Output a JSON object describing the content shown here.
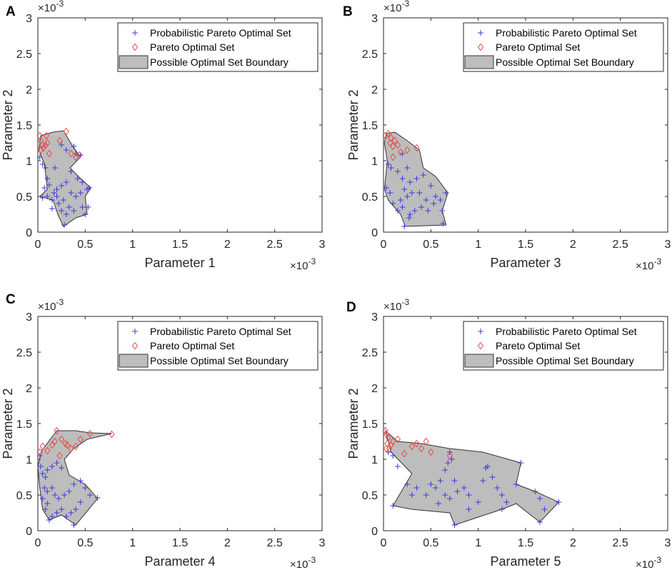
{
  "chart_data": [
    {
      "panel": "A",
      "type": "scatter",
      "xlabel": "Parameter 1",
      "ylabel": "Parameter 2",
      "x_multiplier": "×10^-3",
      "y_multiplier": "×10^-3",
      "xlim": [
        0,
        3
      ],
      "ylim": [
        0,
        3
      ],
      "xticks": [
        "0",
        "0.5",
        "1",
        "1.5",
        "2",
        "2.5",
        "3"
      ],
      "yticks": [
        "0",
        "0.5",
        "1",
        "1.5",
        "2",
        "2.5",
        "3"
      ],
      "legend": [
        "Probabilistic Pareto Optimal Set",
        "Pareto Optimal Set",
        "Possible Optimal Set Boundary"
      ],
      "legend_position": "top-right",
      "boundary": [
        [
          0.03,
          1.35
        ],
        [
          0.16,
          1.4
        ],
        [
          0.27,
          1.42
        ],
        [
          0.37,
          1.2
        ],
        [
          0.45,
          1.05
        ],
        [
          0.34,
          0.9
        ],
        [
          0.45,
          0.75
        ],
        [
          0.56,
          0.62
        ],
        [
          0.5,
          0.5
        ],
        [
          0.52,
          0.25
        ],
        [
          0.4,
          0.2
        ],
        [
          0.27,
          0.08
        ],
        [
          0.21,
          0.25
        ],
        [
          0.16,
          0.45
        ],
        [
          0.02,
          0.5
        ],
        [
          0.1,
          0.6
        ],
        [
          0.07,
          0.95
        ],
        [
          0.01,
          1.15
        ]
      ],
      "probabilistic_set": [
        [
          0.02,
          1.05
        ],
        [
          0.05,
          0.95
        ],
        [
          0.08,
          0.9
        ],
        [
          0.07,
          0.62
        ],
        [
          0.12,
          0.66
        ],
        [
          0.1,
          0.75
        ],
        [
          0.18,
          0.9
        ],
        [
          0.25,
          1.22
        ],
        [
          0.3,
          1.15
        ],
        [
          0.38,
          1.2
        ],
        [
          0.4,
          1.1
        ],
        [
          0.45,
          1.08
        ],
        [
          0.35,
          0.85
        ],
        [
          0.42,
          0.75
        ],
        [
          0.47,
          0.7
        ],
        [
          0.52,
          0.6
        ],
        [
          0.54,
          0.62
        ],
        [
          0.45,
          0.55
        ],
        [
          0.4,
          0.5
        ],
        [
          0.47,
          0.35
        ],
        [
          0.5,
          0.25
        ],
        [
          0.53,
          0.35
        ],
        [
          0.38,
          0.3
        ],
        [
          0.33,
          0.35
        ],
        [
          0.3,
          0.25
        ],
        [
          0.28,
          0.1
        ],
        [
          0.25,
          0.3
        ],
        [
          0.22,
          0.4
        ],
        [
          0.2,
          0.5
        ],
        [
          0.15,
          0.45
        ],
        [
          0.1,
          0.5
        ],
        [
          0.05,
          0.48
        ],
        [
          0.17,
          0.55
        ],
        [
          0.2,
          0.6
        ],
        [
          0.25,
          0.65
        ],
        [
          0.3,
          0.7
        ],
        [
          0.35,
          0.55
        ],
        [
          0.27,
          0.45
        ],
        [
          0.15,
          0.33
        ]
      ],
      "pareto_set": [
        [
          0.02,
          1.35
        ],
        [
          0.03,
          1.28
        ],
        [
          0.05,
          1.22
        ],
        [
          0.06,
          1.18
        ],
        [
          0.08,
          1.22
        ],
        [
          0.1,
          1.25
        ],
        [
          0.12,
          1.1
        ],
        [
          0.09,
          1.35
        ],
        [
          0.23,
          1.28
        ],
        [
          0.3,
          1.41
        ],
        [
          0.35,
          1.1
        ],
        [
          0.4,
          1.05
        ],
        [
          0.44,
          1.08
        ],
        [
          0.03,
          1.15
        ]
      ]
    },
    {
      "panel": "B",
      "type": "scatter",
      "xlabel": "Parameter 3",
      "ylabel": "Parameter 2",
      "x_multiplier": "×10^-3",
      "y_multiplier": "×10^-3",
      "xlim": [
        0,
        3
      ],
      "ylim": [
        0,
        3
      ],
      "xticks": [
        "0",
        "0.5",
        "1",
        "1.5",
        "2",
        "2.5",
        "3"
      ],
      "yticks": [
        "0",
        "0.5",
        "1",
        "1.5",
        "2",
        "2.5",
        "3"
      ],
      "legend": [
        "Probabilistic Pareto Optimal Set",
        "Pareto Optimal Set",
        "Possible Optimal Set Boundary"
      ],
      "legend_position": "top-right",
      "boundary": [
        [
          0.03,
          1.38
        ],
        [
          0.12,
          1.4
        ],
        [
          0.25,
          1.28
        ],
        [
          0.38,
          1.15
        ],
        [
          0.42,
          0.9
        ],
        [
          0.55,
          0.78
        ],
        [
          0.68,
          0.55
        ],
        [
          0.62,
          0.3
        ],
        [
          0.66,
          0.1
        ],
        [
          0.23,
          0.08
        ],
        [
          0.18,
          0.25
        ],
        [
          0.05,
          0.45
        ],
        [
          0.01,
          0.6
        ],
        [
          0.04,
          1.0
        ],
        [
          0.01,
          1.25
        ]
      ],
      "probabilistic_set": [
        [
          0.05,
          0.95
        ],
        [
          0.08,
          0.9
        ],
        [
          0.03,
          0.62
        ],
        [
          0.07,
          0.55
        ],
        [
          0.1,
          0.4
        ],
        [
          0.15,
          0.85
        ],
        [
          0.2,
          1.1
        ],
        [
          0.25,
          0.9
        ],
        [
          0.2,
          0.75
        ],
        [
          0.28,
          0.7
        ],
        [
          0.22,
          0.6
        ],
        [
          0.25,
          0.5
        ],
        [
          0.3,
          0.55
        ],
        [
          0.35,
          0.75
        ],
        [
          0.42,
          0.8
        ],
        [
          0.5,
          0.65
        ],
        [
          0.55,
          0.5
        ],
        [
          0.6,
          0.45
        ],
        [
          0.66,
          0.55
        ],
        [
          0.62,
          0.3
        ],
        [
          0.63,
          0.12
        ],
        [
          0.45,
          0.45
        ],
        [
          0.4,
          0.35
        ],
        [
          0.33,
          0.3
        ],
        [
          0.28,
          0.25
        ],
        [
          0.2,
          0.35
        ],
        [
          0.18,
          0.45
        ],
        [
          0.22,
          0.08
        ],
        [
          0.27,
          0.2
        ],
        [
          0.38,
          0.55
        ],
        [
          0.47,
          0.3
        ],
        [
          0.53,
          0.4
        ],
        [
          0.15,
          0.3
        ]
      ],
      "pareto_set": [
        [
          0.02,
          1.35
        ],
        [
          0.05,
          1.38
        ],
        [
          0.08,
          1.32
        ],
        [
          0.1,
          1.2
        ],
        [
          0.12,
          1.28
        ],
        [
          0.15,
          1.22
        ],
        [
          0.18,
          1.12
        ],
        [
          0.1,
          1.05
        ],
        [
          0.25,
          1.15
        ],
        [
          0.35,
          1.18
        ],
        [
          0.07,
          1.25
        ]
      ]
    },
    {
      "panel": "C",
      "type": "scatter",
      "xlabel": "Parameter 4",
      "ylabel": "Parameter 2",
      "x_multiplier": "×10^-3",
      "y_multiplier": "×10^-3",
      "xlim": [
        0,
        3
      ],
      "ylim": [
        0,
        3
      ],
      "xticks": [
        "0",
        "0.5",
        "1",
        "1.5",
        "2",
        "2.5",
        "3"
      ],
      "yticks": [
        "0",
        "0.5",
        "1",
        "1.5",
        "2",
        "2.5",
        "3"
      ],
      "legend": [
        "Probabilistic Pareto Optimal Set",
        "Pareto Optimal Set",
        "Possible Optimal Set Boundary"
      ],
      "legend_position": "top-right",
      "boundary": [
        [
          0.04,
          1.12
        ],
        [
          0.2,
          1.4
        ],
        [
          0.4,
          1.4
        ],
        [
          0.55,
          1.37
        ],
        [
          0.78,
          1.36
        ],
        [
          0.52,
          1.28
        ],
        [
          0.38,
          1.15
        ],
        [
          0.28,
          1.0
        ],
        [
          0.33,
          0.78
        ],
        [
          0.5,
          0.65
        ],
        [
          0.63,
          0.45
        ],
        [
          0.4,
          0.08
        ],
        [
          0.25,
          0.22
        ],
        [
          0.12,
          0.15
        ],
        [
          0.05,
          0.3
        ],
        [
          0.02,
          0.6
        ],
        [
          0.0,
          0.9
        ]
      ],
      "probabilistic_set": [
        [
          0.02,
          1.05
        ],
        [
          0.03,
          0.9
        ],
        [
          0.05,
          0.8
        ],
        [
          0.08,
          0.75
        ],
        [
          0.1,
          0.85
        ],
        [
          0.15,
          0.9
        ],
        [
          0.2,
          0.95
        ],
        [
          0.25,
          0.88
        ],
        [
          0.07,
          0.6
        ],
        [
          0.1,
          0.55
        ],
        [
          0.15,
          0.6
        ],
        [
          0.18,
          0.5
        ],
        [
          0.22,
          0.45
        ],
        [
          0.28,
          0.5
        ],
        [
          0.33,
          0.55
        ],
        [
          0.38,
          0.65
        ],
        [
          0.45,
          0.7
        ],
        [
          0.5,
          0.6
        ],
        [
          0.55,
          0.5
        ],
        [
          0.63,
          0.46
        ],
        [
          0.45,
          0.4
        ],
        [
          0.4,
          0.3
        ],
        [
          0.35,
          0.25
        ],
        [
          0.3,
          0.2
        ],
        [
          0.25,
          0.3
        ],
        [
          0.2,
          0.25
        ],
        [
          0.15,
          0.2
        ],
        [
          0.12,
          0.15
        ],
        [
          0.08,
          0.3
        ],
        [
          0.05,
          0.45
        ],
        [
          0.38,
          0.08
        ],
        [
          0.1,
          0.38
        ]
      ],
      "pareto_set": [
        [
          0.02,
          1.1
        ],
        [
          0.05,
          1.18
        ],
        [
          0.1,
          1.12
        ],
        [
          0.15,
          1.2
        ],
        [
          0.18,
          1.25
        ],
        [
          0.2,
          1.4
        ],
        [
          0.25,
          1.28
        ],
        [
          0.29,
          1.22
        ],
        [
          0.31,
          1.2
        ],
        [
          0.35,
          1.15
        ],
        [
          0.4,
          1.18
        ],
        [
          0.45,
          1.28
        ],
        [
          0.55,
          1.36
        ],
        [
          0.78,
          1.35
        ],
        [
          0.23,
          1.05
        ]
      ]
    },
    {
      "panel": "D",
      "type": "scatter",
      "xlabel": "Parameter 5",
      "ylabel": "Parameter 2",
      "x_multiplier": "×10^-3",
      "y_multiplier": "×10^-3",
      "xlim": [
        0,
        3
      ],
      "ylim": [
        0,
        3
      ],
      "xticks": [
        "0",
        "0.5",
        "1",
        "1.5",
        "2",
        "2.5",
        "3"
      ],
      "yticks": [
        "0",
        "0.5",
        "1",
        "1.5",
        "2",
        "2.5",
        "3"
      ],
      "legend": [
        "Probabilistic Pareto Optimal Set",
        "Pareto Optimal Set",
        "Possible Optimal Set Boundary"
      ],
      "legend_position": "top-right",
      "boundary": [
        [
          0.02,
          1.4
        ],
        [
          0.15,
          1.25
        ],
        [
          0.4,
          1.22
        ],
        [
          0.7,
          1.15
        ],
        [
          1.05,
          1.1
        ],
        [
          1.45,
          0.95
        ],
        [
          1.4,
          0.65
        ],
        [
          1.6,
          0.55
        ],
        [
          1.85,
          0.4
        ],
        [
          1.65,
          0.12
        ],
        [
          1.4,
          0.38
        ],
        [
          1.25,
          0.3
        ],
        [
          0.75,
          0.08
        ],
        [
          0.7,
          0.25
        ],
        [
          0.3,
          0.3
        ],
        [
          0.1,
          0.35
        ],
        [
          0.3,
          0.8
        ],
        [
          0.08,
          1.1
        ]
      ],
      "probabilistic_set": [
        [
          0.05,
          1.1
        ],
        [
          0.1,
          1.05
        ],
        [
          0.15,
          0.9
        ],
        [
          0.25,
          0.65
        ],
        [
          0.3,
          0.5
        ],
        [
          0.35,
          0.6
        ],
        [
          0.45,
          0.5
        ],
        [
          0.5,
          0.65
        ],
        [
          0.55,
          0.6
        ],
        [
          0.6,
          0.7
        ],
        [
          0.65,
          0.85
        ],
        [
          0.68,
          0.95
        ],
        [
          0.7,
          1.1
        ],
        [
          0.72,
          1.0
        ],
        [
          0.75,
          0.7
        ],
        [
          0.78,
          0.55
        ],
        [
          0.7,
          0.45
        ],
        [
          0.65,
          0.5
        ],
        [
          0.85,
          0.6
        ],
        [
          0.9,
          0.5
        ],
        [
          1.0,
          0.4
        ],
        [
          1.05,
          0.7
        ],
        [
          1.08,
          0.88
        ],
        [
          1.1,
          0.9
        ],
        [
          1.15,
          0.75
        ],
        [
          1.2,
          0.6
        ],
        [
          1.25,
          0.5
        ],
        [
          1.3,
          0.4
        ],
        [
          1.4,
          0.65
        ],
        [
          1.45,
          0.95
        ],
        [
          1.6,
          0.55
        ],
        [
          1.65,
          0.45
        ],
        [
          1.7,
          0.3
        ],
        [
          1.65,
          0.12
        ],
        [
          1.85,
          0.4
        ],
        [
          1.25,
          0.3
        ],
        [
          0.75,
          0.08
        ],
        [
          0.1,
          0.35
        ],
        [
          0.9,
          0.3
        ],
        [
          0.58,
          0.38
        ]
      ],
      "pareto_set": [
        [
          0.02,
          1.4
        ],
        [
          0.03,
          1.35
        ],
        [
          0.05,
          1.3
        ],
        [
          0.04,
          1.22
        ],
        [
          0.06,
          1.15
        ],
        [
          0.08,
          1.2
        ],
        [
          0.1,
          1.25
        ],
        [
          0.15,
          1.28
        ],
        [
          0.22,
          1.08
        ],
        [
          0.3,
          1.18
        ],
        [
          0.35,
          1.22
        ],
        [
          0.4,
          1.15
        ],
        [
          0.45,
          1.25
        ],
        [
          0.5,
          1.1
        ],
        [
          0.7,
          1.05
        ],
        [
          0.03,
          1.15
        ]
      ]
    }
  ]
}
